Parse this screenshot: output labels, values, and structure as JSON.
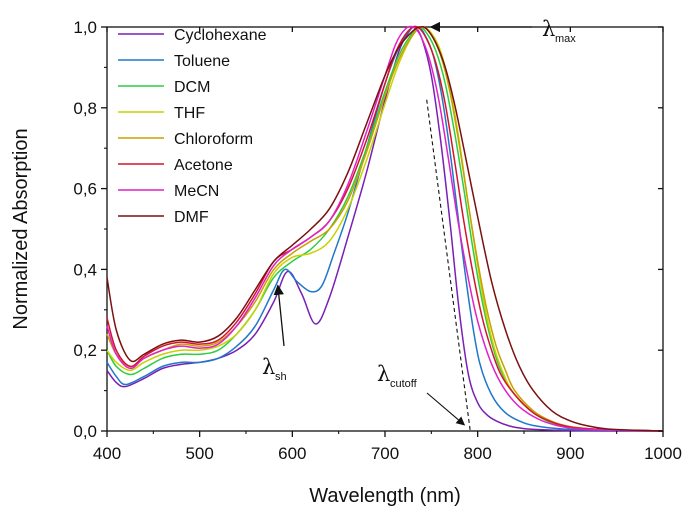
{
  "chart_data": {
    "type": "line",
    "title": "",
    "xlabel": "Wavelength (nm)",
    "ylabel": "Normalized Absorption",
    "xlim": [
      400,
      1000
    ],
    "ylim": [
      0.0,
      1.0
    ],
    "x_ticks": [
      400,
      500,
      600,
      700,
      800,
      900,
      1000
    ],
    "x_tick_labels": [
      "400",
      "500",
      "600",
      "700",
      "800",
      "900",
      "1000"
    ],
    "y_ticks": [
      0.0,
      0.2,
      0.4,
      0.6,
      0.8,
      1.0
    ],
    "y_tick_labels": [
      "0,0",
      "0,2",
      "0,4",
      "0,6",
      "0,8",
      "1,0"
    ],
    "grid": false,
    "legend_position": "top-left",
    "series": [
      {
        "name": "Cyclohexane",
        "color": "#7a1fb5",
        "x": [
          400,
          410,
          420,
          440,
          460,
          480,
          500,
          520,
          540,
          560,
          580,
          595,
          610,
          625,
          640,
          660,
          680,
          700,
          715,
          725,
          732,
          740,
          750,
          760,
          770,
          780,
          790,
          800,
          810,
          820,
          835,
          850,
          870,
          900,
          950,
          1000
        ],
        "y": [
          0.15,
          0.12,
          0.11,
          0.13,
          0.155,
          0.165,
          0.17,
          0.18,
          0.2,
          0.24,
          0.32,
          0.395,
          0.34,
          0.265,
          0.33,
          0.48,
          0.64,
          0.82,
          0.94,
          0.985,
          1.0,
          0.97,
          0.88,
          0.72,
          0.52,
          0.3,
          0.14,
          0.07,
          0.04,
          0.025,
          0.012,
          0.006,
          0.003,
          0.001,
          0.0,
          0.0
        ]
      },
      {
        "name": "Toluene",
        "color": "#1f78c8",
        "x": [
          400,
          410,
          420,
          440,
          460,
          480,
          500,
          520,
          540,
          560,
          580,
          592,
          605,
          620,
          632,
          645,
          660,
          680,
          700,
          715,
          728,
          735,
          742,
          752,
          762,
          772,
          782,
          792,
          802,
          815,
          830,
          850,
          870,
          900,
          950,
          1000
        ],
        "y": [
          0.17,
          0.135,
          0.115,
          0.135,
          0.16,
          0.17,
          0.17,
          0.18,
          0.21,
          0.26,
          0.35,
          0.4,
          0.37,
          0.345,
          0.36,
          0.44,
          0.54,
          0.7,
          0.86,
          0.95,
          0.995,
          1.0,
          0.985,
          0.93,
          0.82,
          0.66,
          0.47,
          0.3,
          0.17,
          0.09,
          0.045,
          0.02,
          0.01,
          0.004,
          0.001,
          0.0
        ]
      },
      {
        "name": "DCM",
        "color": "#2ecc40",
        "x": [
          400,
          410,
          425,
          440,
          460,
          480,
          500,
          520,
          540,
          560,
          580,
          600,
          620,
          640,
          660,
          680,
          700,
          715,
          728,
          737,
          745,
          755,
          765,
          775,
          785,
          795,
          805,
          815,
          825,
          840,
          860,
          880,
          900,
          930,
          960,
          1000
        ],
        "y": [
          0.2,
          0.16,
          0.14,
          0.155,
          0.18,
          0.19,
          0.19,
          0.2,
          0.24,
          0.3,
          0.38,
          0.42,
          0.45,
          0.5,
          0.58,
          0.7,
          0.84,
          0.93,
          0.98,
          1.0,
          0.985,
          0.94,
          0.86,
          0.74,
          0.6,
          0.45,
          0.32,
          0.22,
          0.15,
          0.09,
          0.045,
          0.02,
          0.01,
          0.004,
          0.002,
          0.0
        ]
      },
      {
        "name": "THF",
        "color": "#c8d200",
        "x": [
          400,
          410,
          425,
          440,
          460,
          480,
          500,
          520,
          540,
          560,
          580,
          600,
          620,
          640,
          660,
          680,
          700,
          715,
          730,
          740,
          750,
          760,
          770,
          780,
          790,
          800,
          810,
          820,
          830,
          840,
          860,
          880,
          900,
          930,
          960,
          1000
        ],
        "y": [
          0.2,
          0.17,
          0.15,
          0.17,
          0.19,
          0.2,
          0.2,
          0.21,
          0.24,
          0.3,
          0.39,
          0.43,
          0.44,
          0.47,
          0.55,
          0.67,
          0.81,
          0.91,
          0.98,
          1.0,
          0.985,
          0.94,
          0.85,
          0.72,
          0.56,
          0.41,
          0.28,
          0.19,
          0.13,
          0.09,
          0.045,
          0.022,
          0.01,
          0.004,
          0.002,
          0.0
        ]
      },
      {
        "name": "Chloroform",
        "color": "#c8a000",
        "x": [
          400,
          410,
          425,
          440,
          460,
          480,
          500,
          520,
          540,
          560,
          580,
          600,
          620,
          640,
          660,
          680,
          700,
          715,
          730,
          740,
          750,
          760,
          770,
          780,
          790,
          800,
          810,
          820,
          830,
          840,
          860,
          880,
          900,
          930,
          960,
          1000
        ],
        "y": [
          0.24,
          0.19,
          0.16,
          0.18,
          0.2,
          0.215,
          0.21,
          0.22,
          0.26,
          0.32,
          0.4,
          0.44,
          0.47,
          0.5,
          0.57,
          0.69,
          0.83,
          0.92,
          0.98,
          1.0,
          0.98,
          0.93,
          0.84,
          0.71,
          0.56,
          0.42,
          0.3,
          0.21,
          0.15,
          0.1,
          0.05,
          0.024,
          0.011,
          0.004,
          0.002,
          0.0
        ]
      },
      {
        "name": "Acetone",
        "color": "#d4142c",
        "x": [
          400,
          410,
          425,
          440,
          460,
          480,
          500,
          520,
          540,
          560,
          580,
          600,
          620,
          640,
          660,
          680,
          700,
          712,
          725,
          735,
          745,
          755,
          765,
          775,
          785,
          795,
          805,
          815,
          825,
          840,
          860,
          880,
          900,
          930,
          960,
          1000
        ],
        "y": [
          0.28,
          0.2,
          0.16,
          0.185,
          0.21,
          0.22,
          0.215,
          0.225,
          0.27,
          0.34,
          0.42,
          0.45,
          0.48,
          0.52,
          0.6,
          0.72,
          0.86,
          0.94,
          0.99,
          1.0,
          0.97,
          0.91,
          0.81,
          0.67,
          0.52,
          0.39,
          0.28,
          0.2,
          0.14,
          0.09,
          0.045,
          0.022,
          0.01,
          0.004,
          0.002,
          0.0
        ]
      },
      {
        "name": "MeCN",
        "color": "#e020c8",
        "x": [
          400,
          410,
          425,
          440,
          460,
          480,
          500,
          520,
          540,
          560,
          580,
          600,
          620,
          640,
          660,
          680,
          700,
          712,
          722,
          730,
          738,
          748,
          758,
          768,
          778,
          788,
          798,
          808,
          818,
          830,
          845,
          865,
          885,
          910,
          950,
          1000
        ],
        "y": [
          0.26,
          0.19,
          0.155,
          0.18,
          0.2,
          0.21,
          0.205,
          0.215,
          0.26,
          0.33,
          0.41,
          0.45,
          0.48,
          0.52,
          0.61,
          0.74,
          0.88,
          0.96,
          0.995,
          1.0,
          0.98,
          0.92,
          0.82,
          0.68,
          0.53,
          0.4,
          0.29,
          0.21,
          0.15,
          0.1,
          0.06,
          0.03,
          0.014,
          0.005,
          0.002,
          0.0
        ]
      },
      {
        "name": "DMF",
        "color": "#7a1010",
        "x": [
          400,
          410,
          425,
          440,
          460,
          480,
          500,
          520,
          540,
          560,
          580,
          600,
          620,
          640,
          660,
          680,
          700,
          715,
          730,
          738,
          745,
          755,
          765,
          775,
          785,
          800,
          815,
          830,
          845,
          860,
          880,
          900,
          920,
          940,
          970,
          1000
        ],
        "y": [
          0.38,
          0.25,
          0.175,
          0.19,
          0.215,
          0.225,
          0.22,
          0.235,
          0.28,
          0.35,
          0.42,
          0.46,
          0.5,
          0.55,
          0.64,
          0.76,
          0.88,
          0.95,
          0.99,
          1.0,
          0.995,
          0.96,
          0.9,
          0.81,
          0.7,
          0.53,
          0.37,
          0.25,
          0.16,
          0.1,
          0.05,
          0.025,
          0.012,
          0.005,
          0.002,
          0.0
        ]
      }
    ],
    "annotations": [
      {
        "name": "lambda-max",
        "main": "λ",
        "sub": "max",
        "arrow_to": [
          745,
          1.0
        ]
      },
      {
        "name": "lambda-sh",
        "main": "λ",
        "sub": "sh",
        "arrow_to": [
          593,
          0.39
        ]
      },
      {
        "name": "lambda-cutoff",
        "main": "λ",
        "sub": "cutoff",
        "arrow_to": [
          790,
          0.005
        ]
      }
    ],
    "tangent_line": {
      "from": [
        745,
        0.82
      ],
      "to": [
        792,
        0.0
      ]
    }
  }
}
